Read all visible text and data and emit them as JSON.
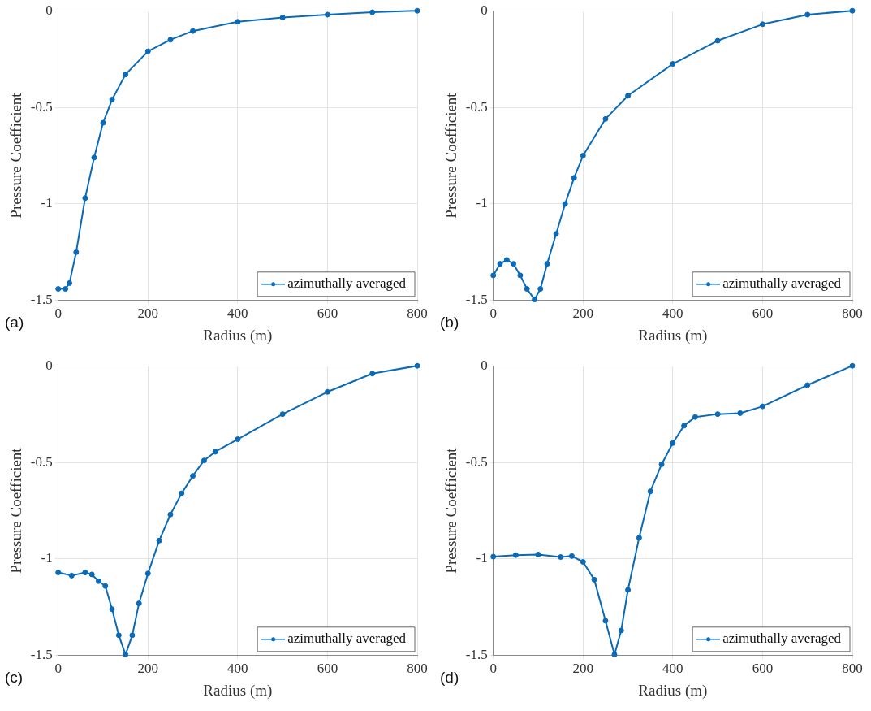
{
  "chart_data": [
    {
      "type": "line",
      "xlabel": "Radius (m)",
      "ylabel": "Pressure Coefficient",
      "annotations": [
        "(a)"
      ],
      "xlim": [
        0,
        800
      ],
      "xticks": [
        0,
        200,
        400,
        600,
        800
      ],
      "ylim": [
        -1.5,
        0
      ],
      "yticks": [
        -1.5,
        -1,
        -0.5,
        0
      ],
      "grid": true,
      "legend": "bottom right",
      "marker": "circle",
      "line_style": "solid",
      "series": [
        {
          "name": "azimuthally averaged",
          "color": "#0a6ab8",
          "x": [
            0,
            16,
            25,
            40,
            60,
            80,
            100,
            120,
            150,
            200,
            250,
            300,
            400,
            500,
            600,
            700,
            800
          ],
          "values": [
            -1.44,
            -1.44,
            -1.41,
            -1.25,
            -0.97,
            -0.76,
            -0.58,
            -0.46,
            -0.33,
            -0.21,
            -0.15,
            -0.105,
            -0.057,
            -0.035,
            -0.02,
            -0.008,
            0
          ]
        }
      ]
    },
    {
      "type": "line",
      "xlabel": "Radius (m)",
      "ylabel": "Pressure Coefficient",
      "annotations": [
        "(b)"
      ],
      "xlim": [
        0,
        800
      ],
      "xticks": [
        0,
        200,
        400,
        600,
        800
      ],
      "ylim": [
        -1.5,
        0
      ],
      "yticks": [
        -1.5,
        -1,
        -0.5,
        0
      ],
      "grid": true,
      "legend": "bottom right",
      "marker": "circle",
      "line_style": "solid",
      "series": [
        {
          "name": "azimuthally averaged",
          "color": "#0a6ab8",
          "x": [
            0,
            15,
            30,
            45,
            60,
            75,
            92,
            105,
            120,
            140,
            160,
            180,
            200,
            250,
            300,
            400,
            500,
            600,
            700,
            800
          ],
          "values": [
            -1.37,
            -1.31,
            -1.29,
            -1.31,
            -1.37,
            -1.44,
            -1.495,
            -1.44,
            -1.31,
            -1.155,
            -1.0,
            -0.865,
            -0.75,
            -0.56,
            -0.44,
            -0.275,
            -0.155,
            -0.07,
            -0.02,
            0
          ]
        }
      ]
    },
    {
      "type": "line",
      "xlabel": "Radius (m)",
      "ylabel": "Pressure Coefficient",
      "annotations": [
        "(c)"
      ],
      "xlim": [
        0,
        800
      ],
      "xticks": [
        0,
        200,
        400,
        600,
        800
      ],
      "ylim": [
        -1.5,
        0
      ],
      "yticks": [
        -1.5,
        -1,
        -0.5,
        0
      ],
      "grid": true,
      "legend": "bottom right",
      "marker": "circle",
      "line_style": "solid",
      "series": [
        {
          "name": "azimuthally averaged",
          "color": "#0a6ab8",
          "x": [
            0,
            30,
            60,
            75,
            90,
            105,
            120,
            135,
            150,
            165,
            180,
            200,
            225,
            250,
            275,
            300,
            325,
            350,
            400,
            500,
            600,
            700,
            800
          ],
          "values": [
            -1.07,
            -1.086,
            -1.07,
            -1.08,
            -1.115,
            -1.14,
            -1.26,
            -1.395,
            -1.495,
            -1.395,
            -1.23,
            -1.075,
            -0.905,
            -0.77,
            -0.66,
            -0.57,
            -0.49,
            -0.445,
            -0.38,
            -0.25,
            -0.135,
            -0.04,
            0
          ]
        }
      ]
    },
    {
      "type": "line",
      "xlabel": "Radius (m)",
      "ylabel": "Pressure Coefficient",
      "annotations": [
        "(d)"
      ],
      "xlim": [
        0,
        800
      ],
      "xticks": [
        0,
        200,
        400,
        600,
        800
      ],
      "ylim": [
        -1.5,
        0
      ],
      "yticks": [
        -1.5,
        -1,
        -0.5,
        0
      ],
      "grid": true,
      "legend": "bottom right",
      "marker": "circle",
      "line_style": "solid",
      "series": [
        {
          "name": "azimuthally averaged",
          "color": "#0a6ab8",
          "x": [
            0,
            50,
            100,
            150,
            175,
            200,
            225,
            250,
            270,
            285,
            300,
            325,
            350,
            375,
            400,
            425,
            450,
            500,
            550,
            600,
            700,
            800
          ],
          "values": [
            -0.988,
            -0.98,
            -0.977,
            -0.99,
            -0.985,
            -1.015,
            -1.107,
            -1.32,
            -1.495,
            -1.37,
            -1.16,
            -0.89,
            -0.65,
            -0.51,
            -0.4,
            -0.31,
            -0.265,
            -0.25,
            -0.245,
            -0.21,
            -0.1,
            0
          ]
        }
      ]
    }
  ]
}
